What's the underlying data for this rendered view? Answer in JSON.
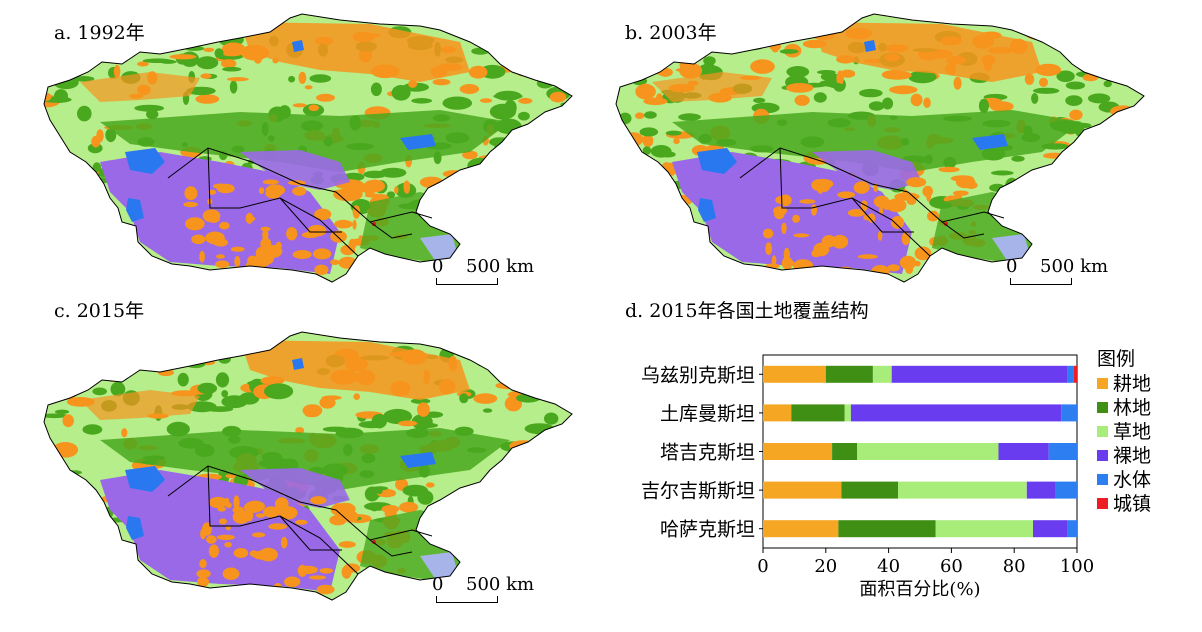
{
  "panels": [
    {
      "label": "a. 1992年",
      "scale": {
        "zero": "0",
        "distance": "500 km"
      }
    },
    {
      "label": "b. 2003年",
      "scale": {
        "zero": "0",
        "distance": "500 km"
      }
    },
    {
      "label": "c. 2015年",
      "scale": {
        "zero": "0",
        "distance": "500 km"
      }
    }
  ],
  "map_colors": {
    "cropland": "#f7941d",
    "forest": "#4aa81e",
    "grassland": "#b6ee8c",
    "barren": "#9a69e8",
    "water": "#2a78f0",
    "urban": "#e8141e",
    "other": "#a7b4ea"
  },
  "chart_data": {
    "type": "bar",
    "orientation": "horizontal",
    "stacked": true,
    "title": "d. 2015年各国土地覆盖结构",
    "xlabel": "面积百分比(%)",
    "xlim": [
      0,
      100
    ],
    "xticks": [
      0,
      20,
      40,
      60,
      80,
      100
    ],
    "categories": [
      "乌兹别克斯坦",
      "土库曼斯坦",
      "塔吉克斯坦",
      "吉尔吉斯斯坦",
      "哈萨克斯坦"
    ],
    "legend_title": "图例",
    "legend_position": "right",
    "series": [
      {
        "name": "耕地",
        "color": "#f5a623",
        "values": [
          20,
          9,
          22,
          25,
          24
        ]
      },
      {
        "name": "林地",
        "color": "#3f8f14",
        "values": [
          15,
          17,
          8,
          18,
          31
        ]
      },
      {
        "name": "草地",
        "color": "#a8ec7a",
        "values": [
          6,
          2,
          45,
          41,
          31
        ]
      },
      {
        "name": "裸地",
        "color": "#6a3cf0",
        "values": [
          56,
          67,
          16,
          9,
          11
        ]
      },
      {
        "name": "水体",
        "color": "#2d7ef0",
        "values": [
          2,
          5,
          9,
          7,
          3
        ]
      },
      {
        "name": "城镇",
        "color": "#ee1c24",
        "values": [
          1,
          0,
          0,
          0,
          0
        ]
      }
    ]
  }
}
